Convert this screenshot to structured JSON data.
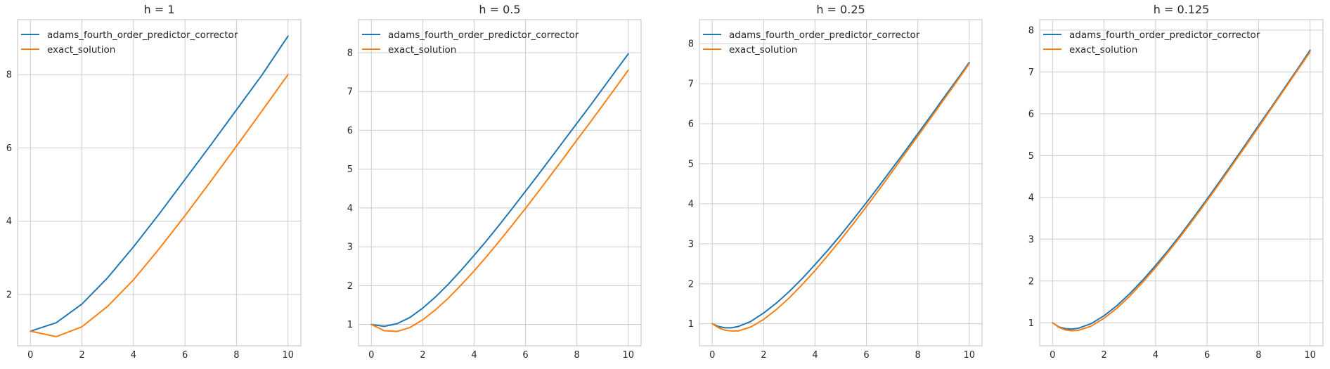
{
  "chart_data": [
    {
      "type": "line",
      "title": "h = 1",
      "xlabel": "",
      "ylabel": "",
      "xlim": [
        -0.5,
        10.5
      ],
      "ylim": [
        0.6,
        9.5
      ],
      "xticks": [
        0,
        2,
        4,
        6,
        8,
        10
      ],
      "yticks": [
        2,
        4,
        6,
        8
      ],
      "grid": true,
      "legend": "top-left",
      "series": [
        {
          "name": "adams_fourth_order_predictor_corrector",
          "color": "#1f77b4",
          "x": [
            0,
            1,
            2,
            3,
            4,
            5,
            6,
            7,
            8,
            9,
            10
          ],
          "y": [
            1.0,
            1.23,
            1.74,
            2.46,
            3.3,
            4.2,
            5.14,
            6.08,
            7.04,
            8.0,
            9.05
          ]
        },
        {
          "name": "exact_solution",
          "color": "#ff7f0e",
          "x": [
            0,
            1,
            2,
            3,
            4,
            5,
            6,
            7,
            8,
            9,
            10
          ],
          "y": [
            1.0,
            0.85,
            1.12,
            1.68,
            2.4,
            3.25,
            4.15,
            5.09,
            6.05,
            7.02,
            8.0
          ]
        }
      ]
    },
    {
      "type": "line",
      "title": "h = 0.5",
      "xlabel": "",
      "ylabel": "",
      "xlim": [
        -0.5,
        10.5
      ],
      "ylim": [
        0.45,
        8.85
      ],
      "xticks": [
        0,
        2,
        4,
        6,
        8,
        10
      ],
      "yticks": [
        1,
        2,
        3,
        4,
        5,
        6,
        7,
        8
      ],
      "grid": true,
      "legend": "top-left",
      "series": [
        {
          "name": "adams_fourth_order_predictor_corrector",
          "color": "#1f77b4",
          "x": [
            0,
            0.5,
            1,
            1.5,
            2,
            2.5,
            3,
            3.5,
            4,
            4.5,
            5,
            5.5,
            6,
            6.5,
            7,
            7.5,
            8,
            8.5,
            9,
            9.5,
            10
          ],
          "y": [
            1.0,
            0.95,
            1.02,
            1.18,
            1.42,
            1.71,
            2.04,
            2.4,
            2.78,
            3.17,
            3.58,
            4.0,
            4.43,
            4.86,
            5.3,
            5.74,
            6.18,
            6.62,
            7.07,
            7.52,
            7.97
          ]
        },
        {
          "name": "exact_solution",
          "color": "#ff7f0e",
          "x": [
            0,
            0.5,
            1,
            1.5,
            2,
            2.5,
            3,
            3.5,
            4,
            4.5,
            5,
            5.5,
            6,
            6.5,
            7,
            7.5,
            8,
            8.5,
            9,
            9.5,
            10
          ],
          "y": [
            1.0,
            0.84,
            0.82,
            0.92,
            1.12,
            1.38,
            1.68,
            2.02,
            2.38,
            2.76,
            3.16,
            3.57,
            3.99,
            4.42,
            4.86,
            5.3,
            5.75,
            6.19,
            6.64,
            7.09,
            7.55
          ]
        }
      ]
    },
    {
      "type": "line",
      "title": "h = 0.25",
      "xlabel": "",
      "ylabel": "",
      "xlim": [
        -0.5,
        10.5
      ],
      "ylim": [
        0.45,
        8.6
      ],
      "xticks": [
        0,
        2,
        4,
        6,
        8,
        10
      ],
      "yticks": [
        1,
        2,
        3,
        4,
        5,
        6,
        7,
        8
      ],
      "grid": true,
      "legend": "top-left",
      "series": [
        {
          "name": "adams_fourth_order_predictor_corrector",
          "color": "#1f77b4",
          "x": [
            0,
            0.25,
            0.5,
            0.75,
            1,
            1.5,
            2,
            2.5,
            3,
            3.5,
            4,
            4.5,
            5,
            5.5,
            6,
            6.5,
            7,
            7.5,
            8,
            8.5,
            9,
            9.5,
            10
          ],
          "y": [
            1.0,
            0.93,
            0.9,
            0.9,
            0.93,
            1.06,
            1.27,
            1.52,
            1.81,
            2.13,
            2.48,
            2.84,
            3.22,
            3.62,
            4.03,
            4.45,
            4.88,
            5.31,
            5.75,
            6.19,
            6.64,
            7.08,
            7.53
          ]
        },
        {
          "name": "exact_solution",
          "color": "#ff7f0e",
          "x": [
            0,
            0.25,
            0.5,
            0.75,
            1,
            1.5,
            2,
            2.5,
            3,
            3.5,
            4,
            4.5,
            5,
            5.5,
            6,
            6.5,
            7,
            7.5,
            8,
            8.5,
            9,
            9.5,
            10
          ],
          "y": [
            1.0,
            0.9,
            0.84,
            0.82,
            0.82,
            0.92,
            1.11,
            1.36,
            1.65,
            1.98,
            2.33,
            2.71,
            3.1,
            3.51,
            3.93,
            4.36,
            4.8,
            5.25,
            5.69,
            6.14,
            6.59,
            7.04,
            7.5
          ]
        }
      ]
    },
    {
      "type": "line",
      "title": "h = 0.125",
      "xlabel": "",
      "ylabel": "",
      "xlim": [
        -0.5,
        10.5
      ],
      "ylim": [
        0.45,
        8.25
      ],
      "xticks": [
        0,
        2,
        4,
        6,
        8,
        10
      ],
      "yticks": [
        1,
        2,
        3,
        4,
        5,
        6,
        7,
        8
      ],
      "grid": true,
      "legend": "top-left",
      "series": [
        {
          "name": "adams_fourth_order_predictor_corrector",
          "color": "#1f77b4",
          "x": [
            0,
            0.25,
            0.5,
            0.75,
            1,
            1.5,
            2,
            2.5,
            3,
            3.5,
            4,
            4.5,
            5,
            5.5,
            6,
            6.5,
            7,
            7.5,
            8,
            8.5,
            9,
            9.5,
            10
          ],
          "y": [
            1.0,
            0.9,
            0.86,
            0.85,
            0.87,
            0.98,
            1.17,
            1.41,
            1.7,
            2.02,
            2.37,
            2.74,
            3.13,
            3.54,
            3.96,
            4.39,
            4.83,
            5.27,
            5.72,
            6.16,
            6.61,
            7.06,
            7.52
          ]
        },
        {
          "name": "exact_solution",
          "color": "#ff7f0e",
          "x": [
            0,
            0.25,
            0.5,
            0.75,
            1,
            1.5,
            2,
            2.5,
            3,
            3.5,
            4,
            4.5,
            5,
            5.5,
            6,
            6.5,
            7,
            7.5,
            8,
            8.5,
            9,
            9.5,
            10
          ],
          "y": [
            1.0,
            0.89,
            0.83,
            0.81,
            0.82,
            0.92,
            1.11,
            1.35,
            1.64,
            1.97,
            2.32,
            2.7,
            3.09,
            3.5,
            3.92,
            4.35,
            4.79,
            5.23,
            5.68,
            6.13,
            6.58,
            7.03,
            7.48
          ]
        }
      ]
    }
  ]
}
